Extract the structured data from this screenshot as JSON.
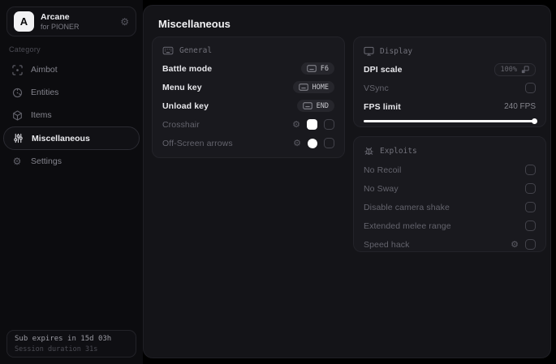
{
  "app": {
    "name": "Arcane",
    "subtitle": "for PIONER",
    "logo_letter": "A"
  },
  "icons": {
    "gear": "⚙"
  },
  "colors": {
    "swatch_crosshair": "#ffffff",
    "swatch_arrows": "#ffffff",
    "slider_track": "#ffffff"
  },
  "sidebar": {
    "category_label": "Category",
    "items": [
      {
        "label": "Aimbot",
        "selected": false
      },
      {
        "label": "Entities",
        "selected": false
      },
      {
        "label": "Items",
        "selected": false
      },
      {
        "label": "Miscellaneous",
        "selected": true
      },
      {
        "label": "Settings",
        "selected": false
      }
    ],
    "footer": {
      "expiry": "Sub expires in 15d 03h",
      "session": "Session duration 31s"
    }
  },
  "main": {
    "title": "Miscellaneous",
    "general": {
      "header": "General",
      "battle_mode": {
        "label": "Battle mode",
        "key": "F6"
      },
      "menu_key": {
        "label": "Menu key",
        "key": "HOME"
      },
      "unload_key": {
        "label": "Unload key",
        "key": "END"
      },
      "crosshair": {
        "label": "Crosshair",
        "color": "#ffffff",
        "checked": false
      },
      "offscreen_arrows": {
        "label": "Off-Screen arrows",
        "color": "#ffffff",
        "checked": false
      }
    },
    "display": {
      "header": "Display",
      "dpi_scale": {
        "label": "DPI scale",
        "value": "100%"
      },
      "vsync": {
        "label": "VSync",
        "checked": false
      },
      "fps_limit": {
        "label": "FPS limit",
        "value": "240 FPS",
        "slider_percent": 100
      }
    },
    "exploits": {
      "header": "Exploits",
      "rows": [
        {
          "label": "No Recoil",
          "checked": false
        },
        {
          "label": "No Sway",
          "checked": false
        },
        {
          "label": "Disable camera shake",
          "checked": false
        },
        {
          "label": "Extended melee range",
          "checked": false
        },
        {
          "label": "Speed hack",
          "checked": false,
          "has_settings": true
        }
      ]
    }
  }
}
